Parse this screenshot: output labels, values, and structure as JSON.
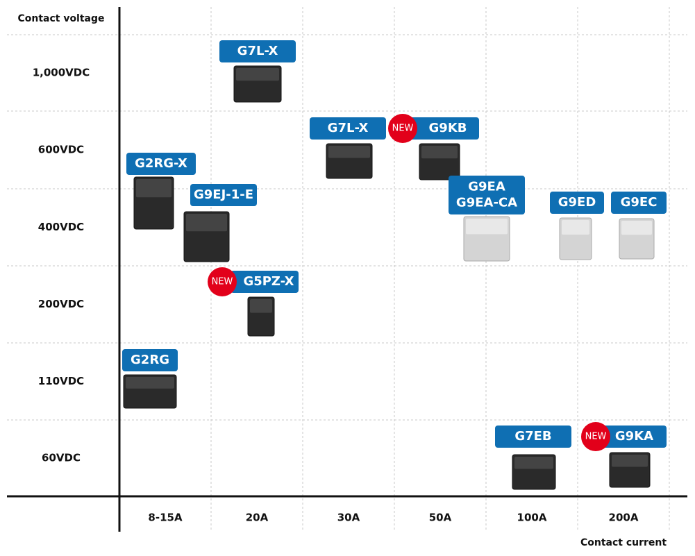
{
  "y_axis_title": "Contact voltage",
  "x_axis_title": "Contact current",
  "voltages": [
    "1,000VDC",
    "600VDC",
    "400VDC",
    "200VDC",
    "110VDC",
    "60VDC"
  ],
  "currents": [
    "8-15A",
    "20A",
    "30A",
    "50A",
    "100A",
    "200A"
  ],
  "products": [
    {
      "label": [
        "G7L-X"
      ]
    },
    {
      "label": [
        "G7L-X"
      ]
    },
    {
      "label": [
        "G9KB"
      ],
      "badge": "NEW"
    },
    {
      "label": [
        "G2RG-X"
      ]
    },
    {
      "label": [
        "G9EJ-1-E"
      ]
    },
    {
      "label": [
        "G9EA",
        "G9EA-CA"
      ]
    },
    {
      "label": [
        "G9ED"
      ]
    },
    {
      "label": [
        "G9EC"
      ]
    },
    {
      "label": [
        "G5PZ-X"
      ],
      "badge": "NEW"
    },
    {
      "label": [
        "G2RG"
      ]
    },
    {
      "label": [
        "G7EB"
      ]
    },
    {
      "label": [
        "G9KA"
      ],
      "badge": "NEW"
    }
  ]
}
